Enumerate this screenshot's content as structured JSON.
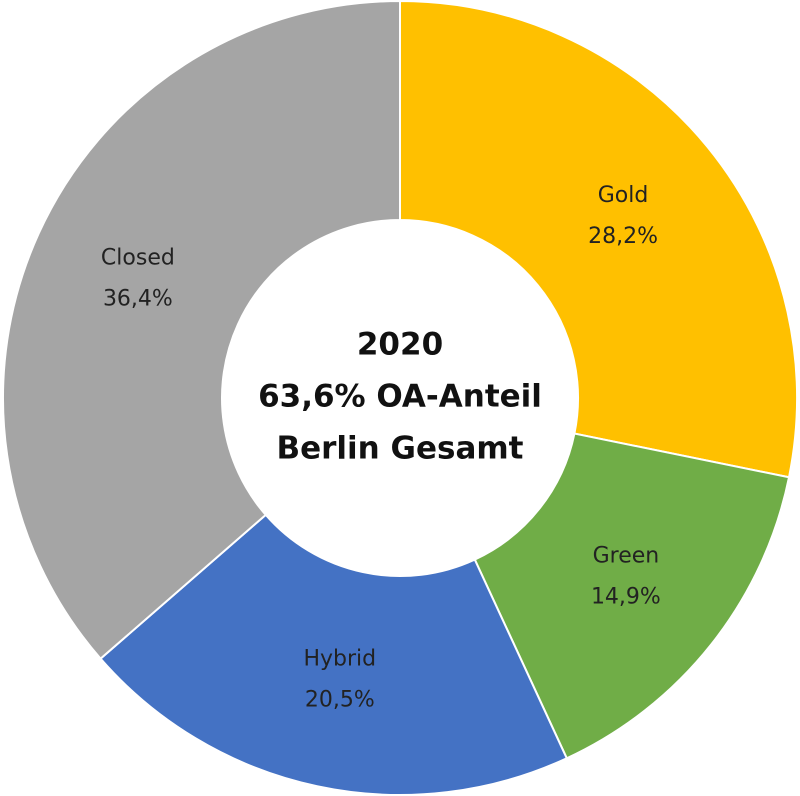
{
  "chart_data": {
    "type": "donut",
    "center_text": [
      "2020",
      "63,6% OA-Anteil",
      "Berlin Gesamt"
    ],
    "categories": [
      "Gold",
      "Green",
      "Hybrid",
      "Closed"
    ],
    "values": [
      28.2,
      14.9,
      20.5,
      36.4
    ],
    "value_labels": [
      "28,2%",
      "14,9%",
      "20,5%",
      "36,4%"
    ],
    "colors": [
      "#FFC000",
      "#70AD47",
      "#4472C4",
      "#A5A5A5"
    ]
  }
}
